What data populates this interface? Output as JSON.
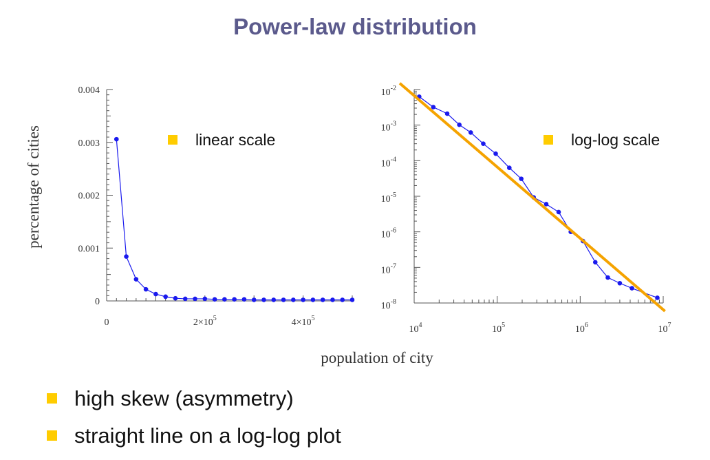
{
  "title": "Power-law distribution",
  "shared_xlabel": "population of city",
  "bullets": [
    "high skew (asymmetry)",
    "straight line on a log-log plot"
  ],
  "colors": {
    "title": "#5b5a8c",
    "series": "#1a1aee",
    "fit_line": "#f5a300",
    "legend_marker": "#ffcc00",
    "bullet_marker": "#ffcc00"
  },
  "chart_data": [
    {
      "type": "line",
      "scale": "linear",
      "legend": "linear scale",
      "legend_placement": "top-right",
      "ylabel": "percentage of cities",
      "xlabel": "population of city",
      "xlim": [
        0,
        500000
      ],
      "ylim": [
        0,
        0.004
      ],
      "x_ticks": [
        0,
        200000,
        400000
      ],
      "x_tick_labels": [
        "0",
        "2×10",
        "4×10"
      ],
      "x_tick_sup": [
        "",
        "5",
        "5"
      ],
      "y_ticks": [
        0,
        0.001,
        0.002,
        0.003,
        0.004
      ],
      "y_tick_labels": [
        "0",
        "0.001",
        "0.002",
        "0.003",
        "0.004"
      ],
      "grid": false,
      "series": [
        {
          "x": [
            20000,
            40000,
            60000,
            80000,
            100000,
            120000,
            140000,
            160000,
            180000,
            200000,
            220000,
            240000,
            260000,
            280000,
            300000,
            320000,
            340000,
            360000,
            380000,
            400000,
            420000,
            440000,
            460000,
            480000,
            500000
          ],
          "y": [
            0.00306,
            0.00084,
            0.00041,
            0.00022,
            0.00013,
            8e-05,
            5e-05,
            4e-05,
            4e-05,
            4e-05,
            3e-05,
            3e-05,
            3e-05,
            3e-05,
            2e-05,
            2e-05,
            2e-05,
            2e-05,
            2e-05,
            2e-05,
            2e-05,
            2e-05,
            2e-05,
            2e-05,
            2e-05
          ]
        }
      ]
    },
    {
      "type": "line",
      "scale": "log-log",
      "legend": "log-log scale",
      "legend_placement": "top-right",
      "xlabel": "population of city",
      "xlim": [
        10000,
        10000000
      ],
      "ylim": [
        1e-08,
        0.01
      ],
      "x_tick_labels": [
        "10",
        "10",
        "10",
        "10"
      ],
      "x_tick_sup": [
        "4",
        "5",
        "6",
        "7"
      ],
      "y_tick_labels": [
        "10",
        "10",
        "10",
        "10",
        "10",
        "10",
        "10"
      ],
      "y_tick_sup": [
        "-2",
        "-3",
        "-4",
        "-5",
        "-6",
        "-7",
        "-8"
      ],
      "grid": false,
      "series": [
        {
          "x": [
            11500,
            17000,
            25000,
            35000,
            48000,
            68000,
            96000,
            140000,
            195000,
            275000,
            390000,
            550000,
            770000,
            1080000,
            1520000,
            2150000,
            3000000,
            4200000,
            8500000
          ],
          "y": [
            0.0063,
            0.0032,
            0.0021,
            0.00102,
            0.00062,
            0.0003,
            0.000157,
            6.3e-05,
            3.1e-05,
            9.3e-06,
            6e-06,
            3.6e-06,
            1e-06,
            5.5e-07,
            1.4e-07,
            5.2e-08,
            3.6e-08,
            2.6e-08,
            1.4e-08
          ]
        }
      ],
      "fit_line": {
        "x": [
          6700,
          10500000
        ],
        "y": [
          0.015,
          5.9e-09
        ]
      }
    }
  ]
}
